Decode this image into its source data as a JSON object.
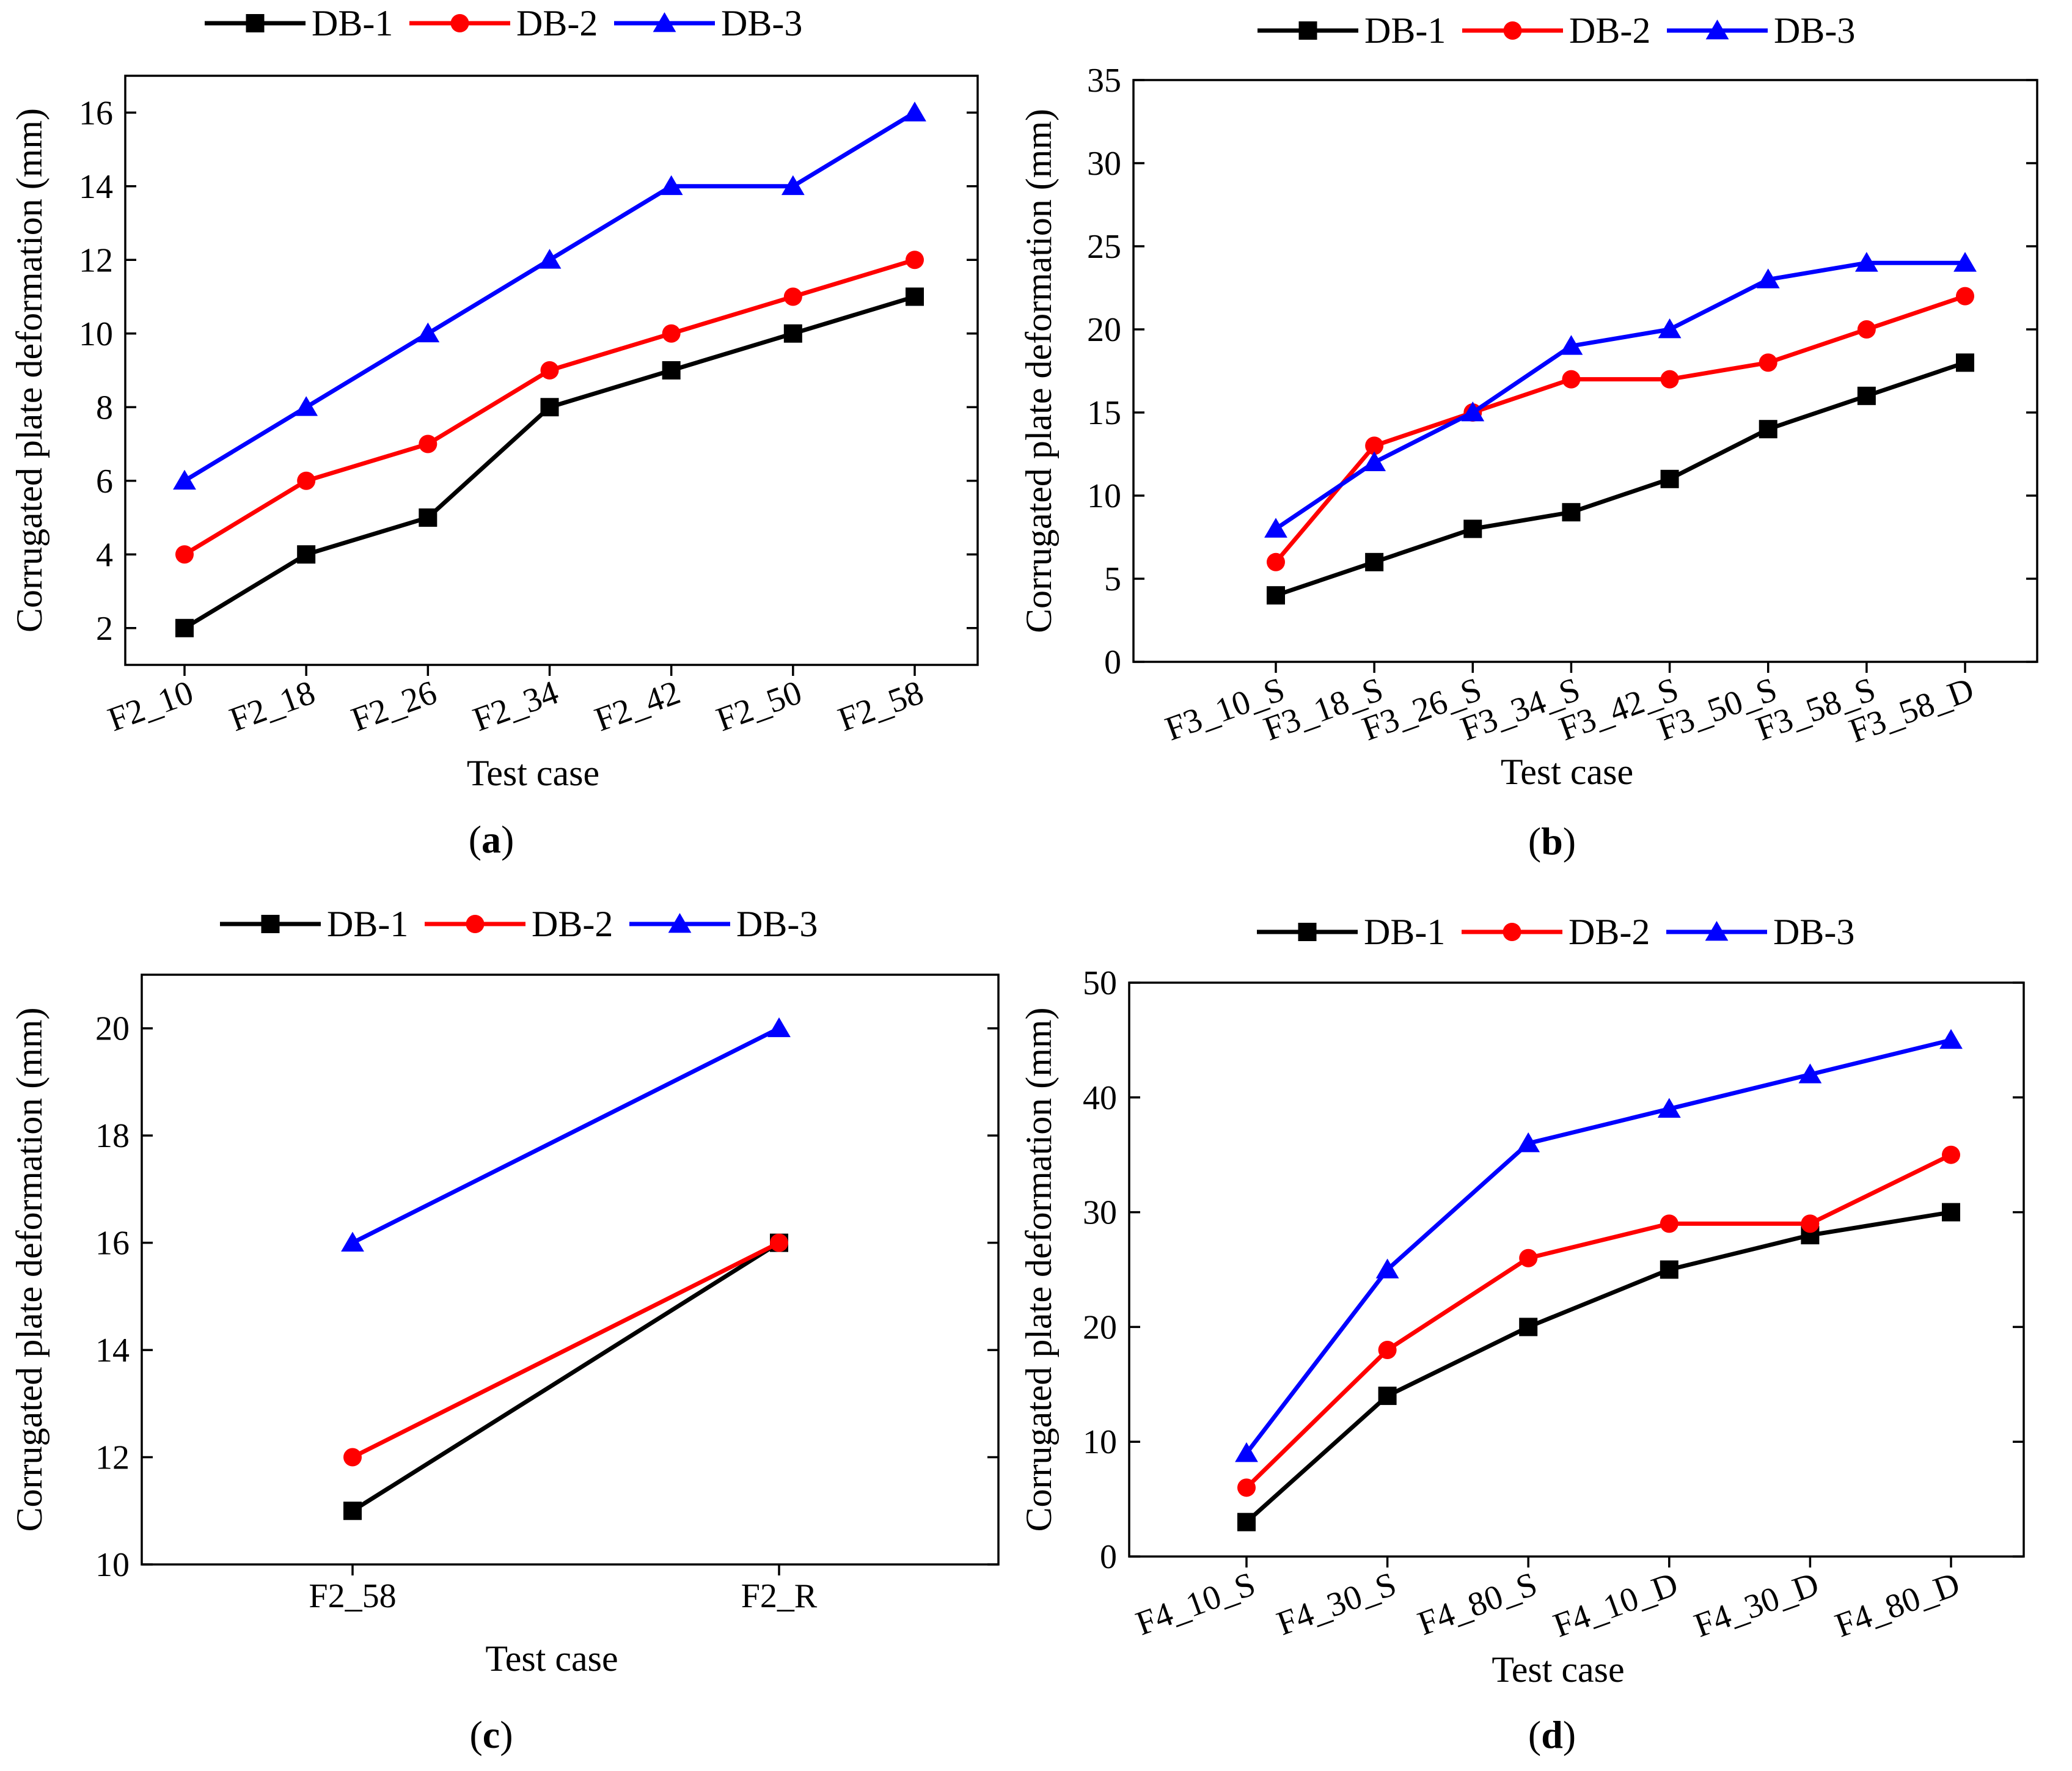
{
  "chart_data": [
    {
      "id": "a",
      "type": "line",
      "panel_label": "a",
      "xlabel": "Test case",
      "ylabel": "Corrugated plate deformation (mm)",
      "ylim": [
        1,
        17
      ],
      "yticks": [
        2,
        4,
        6,
        8,
        10,
        12,
        14,
        16
      ],
      "categories": [
        "F2_10",
        "F2_18",
        "F2_26",
        "F2_34",
        "F2_42",
        "F2_50",
        "F2_58"
      ],
      "series": [
        {
          "name": "DB-1",
          "color": "#000000",
          "marker": "square",
          "values": [
            2,
            4,
            5,
            8,
            9,
            10,
            11
          ]
        },
        {
          "name": "DB-2",
          "color": "#ff0000",
          "marker": "circle",
          "values": [
            4,
            6,
            7,
            9,
            10,
            11,
            12
          ]
        },
        {
          "name": "DB-3",
          "color": "#0000ff",
          "marker": "triangle",
          "values": [
            6,
            8,
            10,
            12,
            14,
            14,
            16
          ]
        }
      ]
    },
    {
      "id": "b",
      "type": "line",
      "panel_label": "b",
      "xlabel": "Test case",
      "ylabel": "Corrugated plate deformation (mm)",
      "ylim": [
        0,
        35
      ],
      "yticks": [
        0,
        5,
        10,
        15,
        20,
        25,
        30,
        35
      ],
      "categories": [
        "F3_10_S",
        "F3_18_S",
        "F3_26_S",
        "F3_34_S",
        "F3_42_S",
        "F3_50_S",
        "F3_58_S",
        "F3_58_D"
      ],
      "series": [
        {
          "name": "DB-1",
          "color": "#000000",
          "marker": "square",
          "values": [
            4,
            6,
            8,
            9,
            11,
            14,
            16,
            18
          ]
        },
        {
          "name": "DB-2",
          "color": "#ff0000",
          "marker": "circle",
          "values": [
            6,
            13,
            15,
            17,
            17,
            18,
            20,
            22
          ]
        },
        {
          "name": "DB-3",
          "color": "#0000ff",
          "marker": "triangle",
          "values": [
            8,
            12,
            15,
            19,
            20,
            23,
            24,
            24
          ]
        }
      ]
    },
    {
      "id": "c",
      "type": "line",
      "panel_label": "c",
      "xlabel": "Test case",
      "ylabel": "Corrugated plate deformation (mm)",
      "ylim": [
        10,
        21
      ],
      "yticks": [
        10,
        12,
        14,
        16,
        18,
        20
      ],
      "categories": [
        "F2_58",
        "F2_R"
      ],
      "series": [
        {
          "name": "DB-1",
          "color": "#000000",
          "marker": "square",
          "values": [
            11,
            16
          ]
        },
        {
          "name": "DB-2",
          "color": "#ff0000",
          "marker": "circle",
          "values": [
            12,
            16
          ]
        },
        {
          "name": "DB-3",
          "color": "#0000ff",
          "marker": "triangle",
          "values": [
            16,
            20
          ]
        }
      ]
    },
    {
      "id": "d",
      "type": "line",
      "panel_label": "d",
      "xlabel": "Test case",
      "ylabel": "Corrugated plate deformation (mm)",
      "ylim": [
        0,
        50
      ],
      "yticks": [
        0,
        10,
        20,
        30,
        40,
        50
      ],
      "categories": [
        "F4_10_S",
        "F4_30_S",
        "F4_80_S",
        "F4_10_D",
        "F4_30_D",
        "F4_80_D"
      ],
      "series": [
        {
          "name": "DB-1",
          "color": "#000000",
          "marker": "square",
          "values": [
            3,
            14,
            20,
            25,
            28,
            30
          ]
        },
        {
          "name": "DB-2",
          "color": "#ff0000",
          "marker": "circle",
          "values": [
            6,
            18,
            26,
            29,
            29,
            35
          ]
        },
        {
          "name": "DB-3",
          "color": "#0000ff",
          "marker": "triangle",
          "values": [
            9,
            25,
            36,
            39,
            42,
            45
          ]
        }
      ]
    }
  ]
}
